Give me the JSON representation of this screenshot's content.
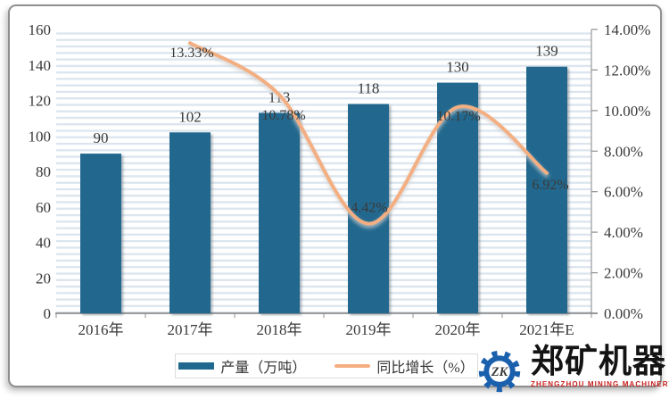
{
  "chart_data": {
    "type": "combo-bar-line",
    "categories": [
      "2016年",
      "2017年",
      "2018年",
      "2019年",
      "2020年",
      "2021年E"
    ],
    "series": [
      {
        "name": "产量（万吨）",
        "type": "bar",
        "axis": "left",
        "color": "#20688E",
        "values": [
          90,
          102,
          113,
          118,
          130,
          139
        ],
        "value_labels": [
          "90",
          "102",
          "113",
          "118",
          "130",
          "139"
        ]
      },
      {
        "name": "同比增长（%）",
        "type": "line",
        "axis": "right",
        "color": "#F3AF82",
        "values": [
          null,
          13.33,
          10.78,
          4.42,
          10.17,
          6.92
        ],
        "point_labels": [
          "",
          "13.33%",
          "10.78%",
          "4.42%",
          "10.17%",
          "6.92%"
        ],
        "label_dx": [
          0,
          2,
          5,
          1,
          1,
          4
        ],
        "label_dy": [
          0,
          16,
          28,
          -13,
          15,
          18
        ]
      }
    ],
    "left_axis": {
      "min": 0,
      "max": 160,
      "step": 20,
      "ticks": [
        "160",
        "140",
        "120",
        "100",
        "80",
        "60",
        "40",
        "20",
        "0"
      ]
    },
    "right_axis": {
      "min": 0,
      "max": 14,
      "step": 2,
      "ticks": [
        "14.00%",
        "12.00%",
        "10.00%",
        "8.00%",
        "6.00%",
        "4.00%",
        "2.00%",
        "0.00%"
      ]
    },
    "legend": [
      "产量（万吨）",
      "同比增长（%）"
    ],
    "legend_position": "bottom",
    "grid": "horizontal-stripes",
    "stripe_color": "#dbe5ee",
    "axis_line_color": "#7f7f7f"
  },
  "logo": {
    "initials": "ZK",
    "name": "郑矿机器",
    "subtitle": "ZHENGZHOU MINING MACHINERY",
    "gear_color": "#1B60AD",
    "accent_red": "#C8201E"
  }
}
